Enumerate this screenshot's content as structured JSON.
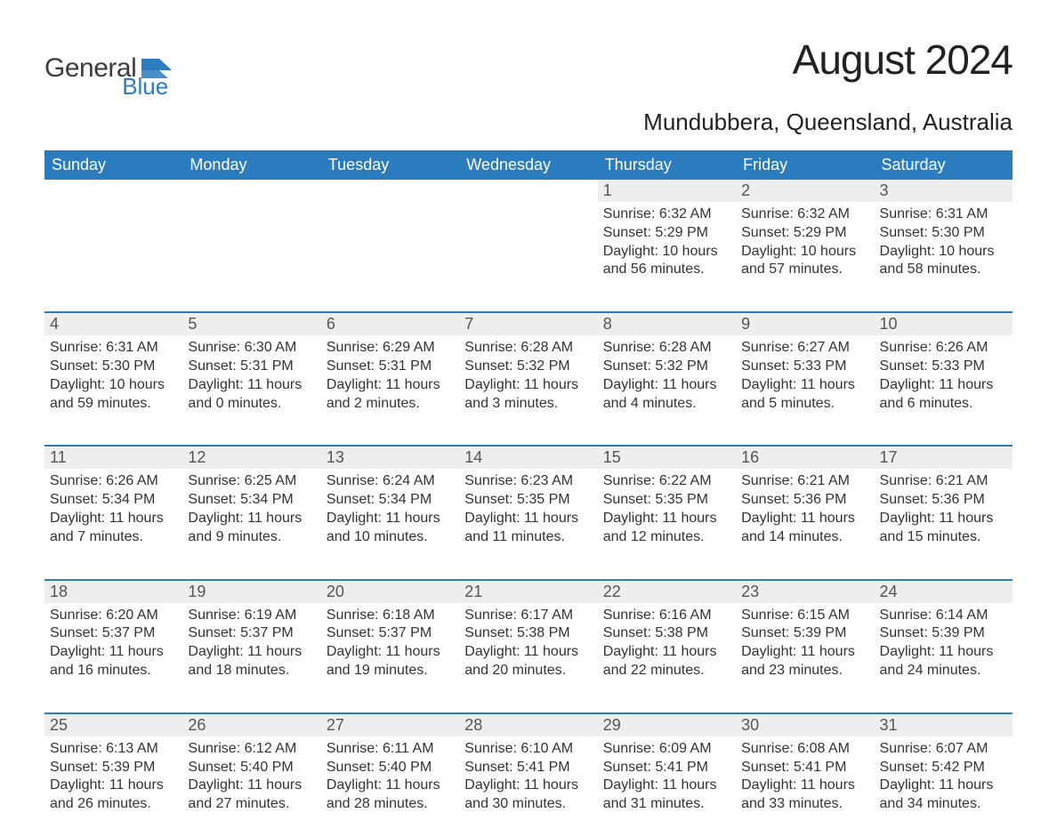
{
  "logo": {
    "text1": "General",
    "text2": "Blue",
    "flag_color": "#2b7bbf"
  },
  "title": "August 2024",
  "location": "Mundubbera, Queensland, Australia",
  "colors": {
    "header_bg": "#2b7bbf",
    "header_fg": "#ffffff",
    "daynum_bg": "#eeeeee",
    "daynum_border": "#2b7bbf",
    "body_text": "#333333",
    "page_bg": "#ffffff"
  },
  "typography": {
    "title_fontsize": 46,
    "location_fontsize": 26,
    "dow_fontsize": 18,
    "daynum_fontsize": 18,
    "detail_fontsize": 16
  },
  "layout": {
    "columns": 7,
    "rows": 5
  },
  "days_of_week": [
    "Sunday",
    "Monday",
    "Tuesday",
    "Wednesday",
    "Thursday",
    "Friday",
    "Saturday"
  ],
  "weeks": [
    [
      null,
      null,
      null,
      null,
      {
        "n": "1",
        "sunrise": "6:32 AM",
        "sunset": "5:29 PM",
        "daylight": "10 hours and 56 minutes."
      },
      {
        "n": "2",
        "sunrise": "6:32 AM",
        "sunset": "5:29 PM",
        "daylight": "10 hours and 57 minutes."
      },
      {
        "n": "3",
        "sunrise": "6:31 AM",
        "sunset": "5:30 PM",
        "daylight": "10 hours and 58 minutes."
      }
    ],
    [
      {
        "n": "4",
        "sunrise": "6:31 AM",
        "sunset": "5:30 PM",
        "daylight": "10 hours and 59 minutes."
      },
      {
        "n": "5",
        "sunrise": "6:30 AM",
        "sunset": "5:31 PM",
        "daylight": "11 hours and 0 minutes."
      },
      {
        "n": "6",
        "sunrise": "6:29 AM",
        "sunset": "5:31 PM",
        "daylight": "11 hours and 2 minutes."
      },
      {
        "n": "7",
        "sunrise": "6:28 AM",
        "sunset": "5:32 PM",
        "daylight": "11 hours and 3 minutes."
      },
      {
        "n": "8",
        "sunrise": "6:28 AM",
        "sunset": "5:32 PM",
        "daylight": "11 hours and 4 minutes."
      },
      {
        "n": "9",
        "sunrise": "6:27 AM",
        "sunset": "5:33 PM",
        "daylight": "11 hours and 5 minutes."
      },
      {
        "n": "10",
        "sunrise": "6:26 AM",
        "sunset": "5:33 PM",
        "daylight": "11 hours and 6 minutes."
      }
    ],
    [
      {
        "n": "11",
        "sunrise": "6:26 AM",
        "sunset": "5:34 PM",
        "daylight": "11 hours and 7 minutes."
      },
      {
        "n": "12",
        "sunrise": "6:25 AM",
        "sunset": "5:34 PM",
        "daylight": "11 hours and 9 minutes."
      },
      {
        "n": "13",
        "sunrise": "6:24 AM",
        "sunset": "5:34 PM",
        "daylight": "11 hours and 10 minutes."
      },
      {
        "n": "14",
        "sunrise": "6:23 AM",
        "sunset": "5:35 PM",
        "daylight": "11 hours and 11 minutes."
      },
      {
        "n": "15",
        "sunrise": "6:22 AM",
        "sunset": "5:35 PM",
        "daylight": "11 hours and 12 minutes."
      },
      {
        "n": "16",
        "sunrise": "6:21 AM",
        "sunset": "5:36 PM",
        "daylight": "11 hours and 14 minutes."
      },
      {
        "n": "17",
        "sunrise": "6:21 AM",
        "sunset": "5:36 PM",
        "daylight": "11 hours and 15 minutes."
      }
    ],
    [
      {
        "n": "18",
        "sunrise": "6:20 AM",
        "sunset": "5:37 PM",
        "daylight": "11 hours and 16 minutes."
      },
      {
        "n": "19",
        "sunrise": "6:19 AM",
        "sunset": "5:37 PM",
        "daylight": "11 hours and 18 minutes."
      },
      {
        "n": "20",
        "sunrise": "6:18 AM",
        "sunset": "5:37 PM",
        "daylight": "11 hours and 19 minutes."
      },
      {
        "n": "21",
        "sunrise": "6:17 AM",
        "sunset": "5:38 PM",
        "daylight": "11 hours and 20 minutes."
      },
      {
        "n": "22",
        "sunrise": "6:16 AM",
        "sunset": "5:38 PM",
        "daylight": "11 hours and 22 minutes."
      },
      {
        "n": "23",
        "sunrise": "6:15 AM",
        "sunset": "5:39 PM",
        "daylight": "11 hours and 23 minutes."
      },
      {
        "n": "24",
        "sunrise": "6:14 AM",
        "sunset": "5:39 PM",
        "daylight": "11 hours and 24 minutes."
      }
    ],
    [
      {
        "n": "25",
        "sunrise": "6:13 AM",
        "sunset": "5:39 PM",
        "daylight": "11 hours and 26 minutes."
      },
      {
        "n": "26",
        "sunrise": "6:12 AM",
        "sunset": "5:40 PM",
        "daylight": "11 hours and 27 minutes."
      },
      {
        "n": "27",
        "sunrise": "6:11 AM",
        "sunset": "5:40 PM",
        "daylight": "11 hours and 28 minutes."
      },
      {
        "n": "28",
        "sunrise": "6:10 AM",
        "sunset": "5:41 PM",
        "daylight": "11 hours and 30 minutes."
      },
      {
        "n": "29",
        "sunrise": "6:09 AM",
        "sunset": "5:41 PM",
        "daylight": "11 hours and 31 minutes."
      },
      {
        "n": "30",
        "sunrise": "6:08 AM",
        "sunset": "5:41 PM",
        "daylight": "11 hours and 33 minutes."
      },
      {
        "n": "31",
        "sunrise": "6:07 AM",
        "sunset": "5:42 PM",
        "daylight": "11 hours and 34 minutes."
      }
    ]
  ],
  "labels": {
    "sunrise": "Sunrise:",
    "sunset": "Sunset:",
    "daylight": "Daylight:"
  }
}
